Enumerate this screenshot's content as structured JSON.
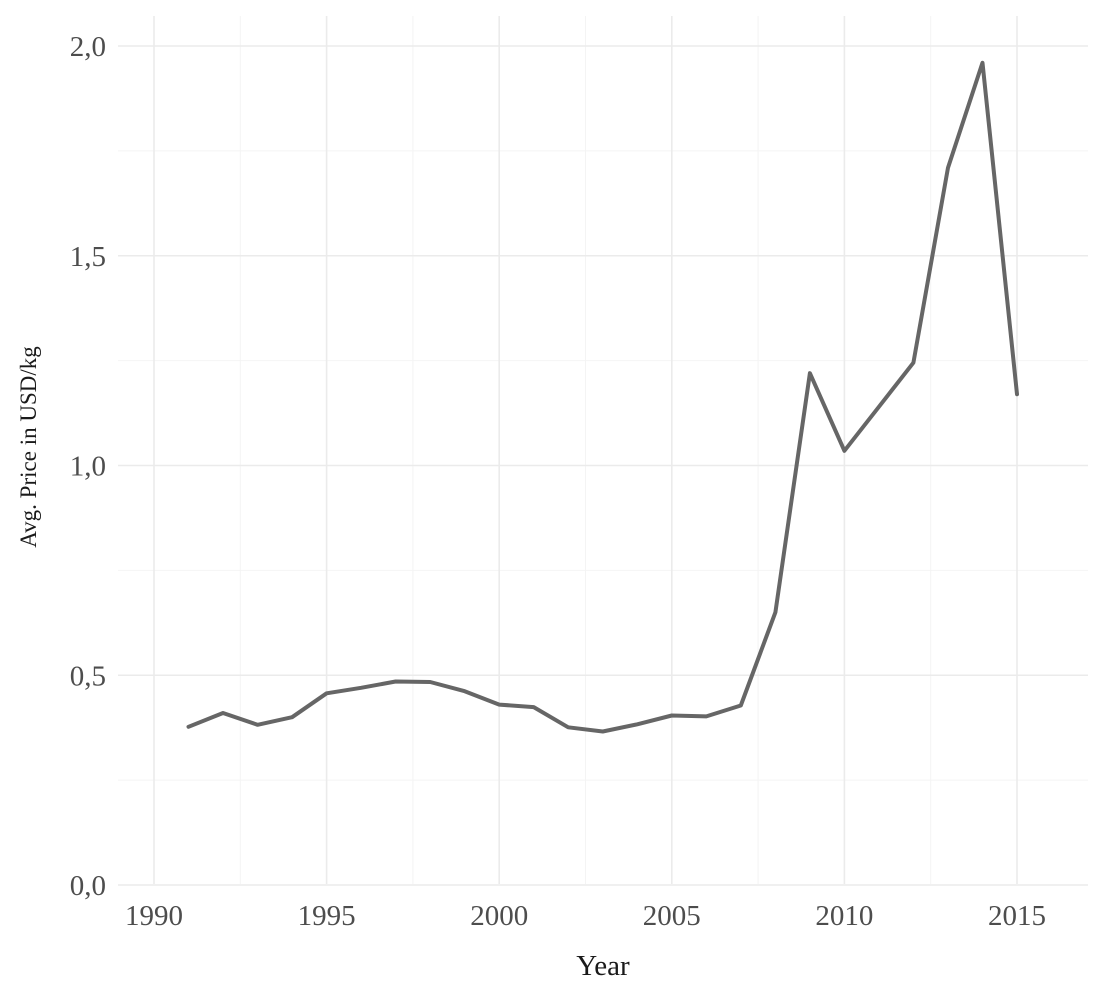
{
  "chart_data": {
    "type": "line",
    "xlabel": "Year",
    "ylabel": "Avg.  Price  in  USD/kg",
    "xlim": [
      1989.5,
      1987.5
    ],
    "ylim": [
      -0.05,
      2.07
    ],
    "x_ticks": [
      1990,
      1995,
      2000,
      2005,
      2010,
      2015
    ],
    "x_tick_labels": [
      "1990",
      "1995",
      "2000",
      "2005",
      "2010",
      "2015"
    ],
    "y_ticks": [
      0.0,
      0.5,
      1.0,
      1.5,
      2.0
    ],
    "y_tick_labels": [
      "0,0",
      "0,5",
      "1,0",
      "1,5",
      "2,0"
    ],
    "grid": true,
    "legend": "none",
    "line_color": "#666666",
    "series": [
      {
        "x": [
          1991,
          1992,
          1993,
          1994,
          1995,
          1996,
          1997,
          1998,
          1999,
          2000,
          2001,
          2002,
          2003,
          2004,
          2005,
          2006,
          2007,
          2008,
          2009,
          2010,
          2011,
          2012,
          2013,
          2014,
          2015
        ],
        "values": [
          0.377,
          0.41,
          0.382,
          0.4,
          0.457,
          0.47,
          0.485,
          0.484,
          0.462,
          0.43,
          0.424,
          0.376,
          0.366,
          0.383,
          0.404,
          0.402,
          0.428,
          0.65,
          1.22,
          1.035,
          1.14,
          1.245,
          1.71,
          1.96,
          1.17
        ]
      }
    ]
  }
}
